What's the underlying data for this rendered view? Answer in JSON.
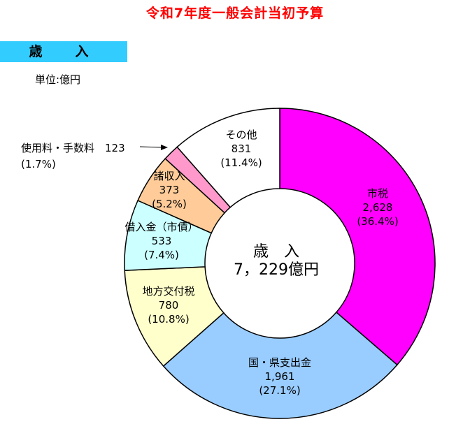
{
  "page": {
    "title": "令和7年度一般会計当初予算",
    "section_label": "歳　入",
    "unit": "単位:億円"
  },
  "chart_data": {
    "type": "pie",
    "variant": "donut",
    "unit": "億円",
    "center_label": "歳　入",
    "center_total": "7，229億円",
    "total": 7229,
    "slices": [
      {
        "name": "市税",
        "value": 2628,
        "value_label": "2,628",
        "percent_label": "(36.4%)",
        "color": "#ff00ff"
      },
      {
        "name": "国・県支出金",
        "value": 1961,
        "value_label": "1,961",
        "percent_label": "(27.1%)",
        "color": "#99ccff"
      },
      {
        "name": "地方交付税",
        "value": 780,
        "value_label": "780",
        "percent_label": "(10.8%)",
        "color": "#ffffcc"
      },
      {
        "name": "借入金（市債）",
        "value": 533,
        "value_label": "533",
        "percent_label": "(7.4%)",
        "color": "#ccffff"
      },
      {
        "name": "諸収入",
        "value": 373,
        "value_label": "373",
        "percent_label": "(5.2%)",
        "color": "#ffcc99"
      },
      {
        "name": "使用料・手数料",
        "value": 123,
        "value_label": "123",
        "percent_label": "(1.7%)",
        "color": "#ff99cc"
      },
      {
        "name": "その他",
        "value": 831,
        "value_label": "831",
        "percent_label": "(11.4%)",
        "color": "#ffffff"
      }
    ]
  }
}
